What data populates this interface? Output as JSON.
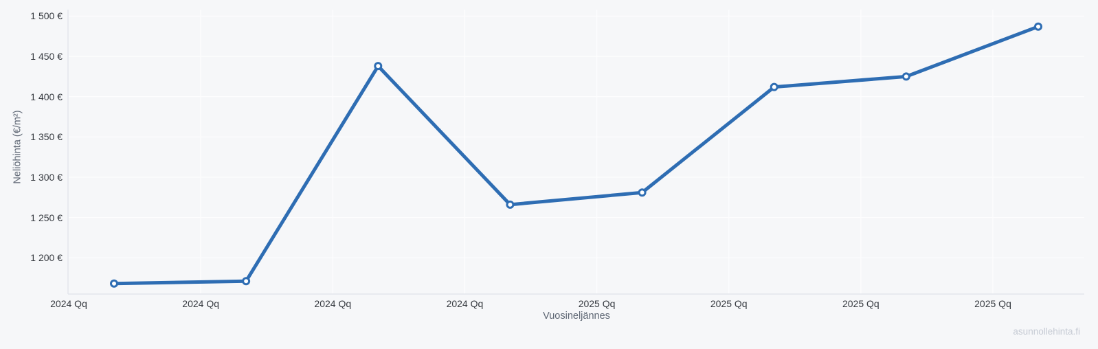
{
  "chart_data": {
    "type": "line",
    "title": "",
    "xlabel": "Vuosineljännes",
    "ylabel": "Neliöhinta (€/m²)",
    "watermark": "asunnollehinta.fi",
    "x_tick_labels": [
      "2024 Qq",
      "2024 Qq",
      "2024 Qq",
      "2024 Qq",
      "2025 Qq",
      "2025 Qq",
      "2025 Qq",
      "2025 Qq"
    ],
    "y_ticks": [
      {
        "label": "1 500 €",
        "value": 1500
      },
      {
        "label": "1 450 €",
        "value": 1450
      },
      {
        "label": "1 400 €",
        "value": 1400
      },
      {
        "label": "1 350 €",
        "value": 1350
      },
      {
        "label": "1 300 €",
        "value": 1300
      },
      {
        "label": "1 250 €",
        "value": 1250
      },
      {
        "label": "1 200 €",
        "value": 1200
      }
    ],
    "series": [
      {
        "name": "Neliöhinta (€/m²)",
        "values": [
          1168,
          1171,
          1438,
          1266,
          1281,
          1412,
          1425,
          1487
        ]
      }
    ],
    "ylim": [
      1155,
      1520
    ],
    "grid": true,
    "legend": "none",
    "colors": {
      "background": "#f6f7f9",
      "line": "#2e6db3",
      "marker_fill": "#ffffff",
      "grid": "#fdfdfe",
      "axis": "#e3e6ec",
      "tick_text": "#35393f",
      "title_text": "#5d6673",
      "watermark": "#c6cbd4"
    }
  }
}
